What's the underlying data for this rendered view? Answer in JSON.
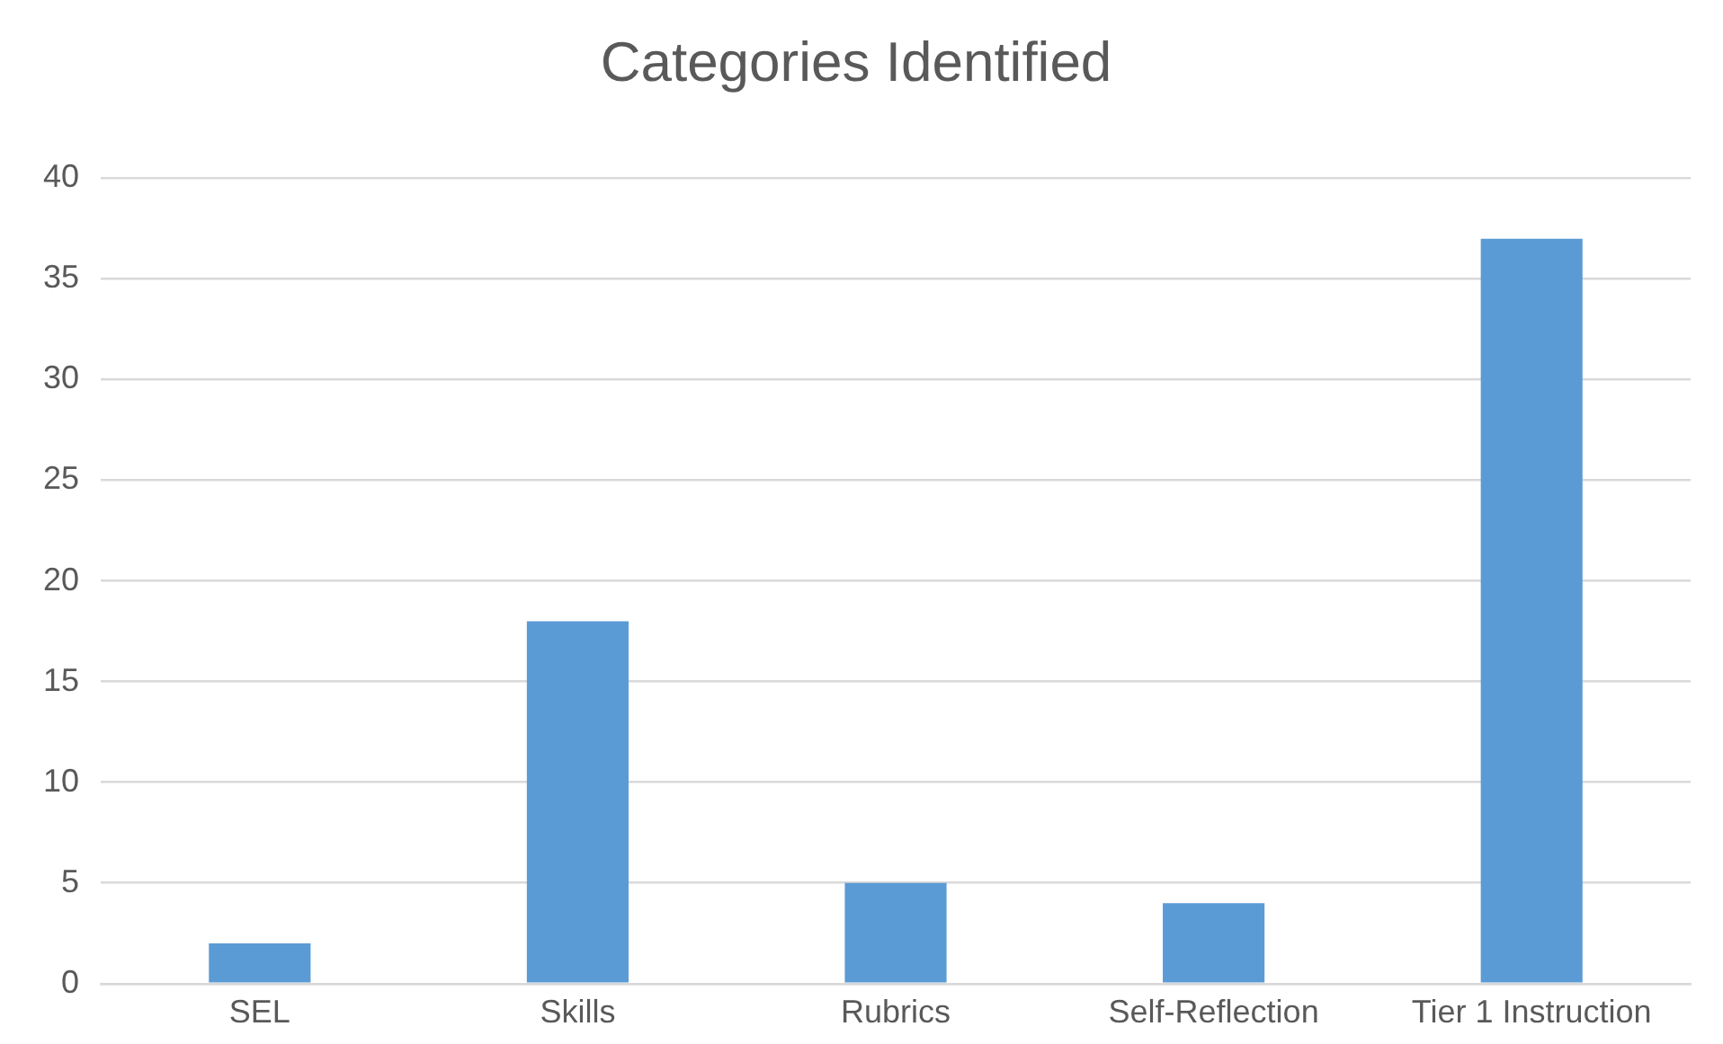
{
  "chart_data": {
    "type": "bar",
    "title": "Categories Identified",
    "categories": [
      "SEL",
      "Skills",
      "Rubrics",
      "Self-Reflection",
      "Tier 1 Instruction"
    ],
    "values": [
      2,
      18,
      5,
      4,
      37
    ],
    "color": "#5b9bd5",
    "ylim": [
      0,
      40
    ],
    "yticks": [
      0,
      5,
      10,
      15,
      20,
      25,
      30,
      35,
      40
    ],
    "grid": "y",
    "legend": false
  }
}
